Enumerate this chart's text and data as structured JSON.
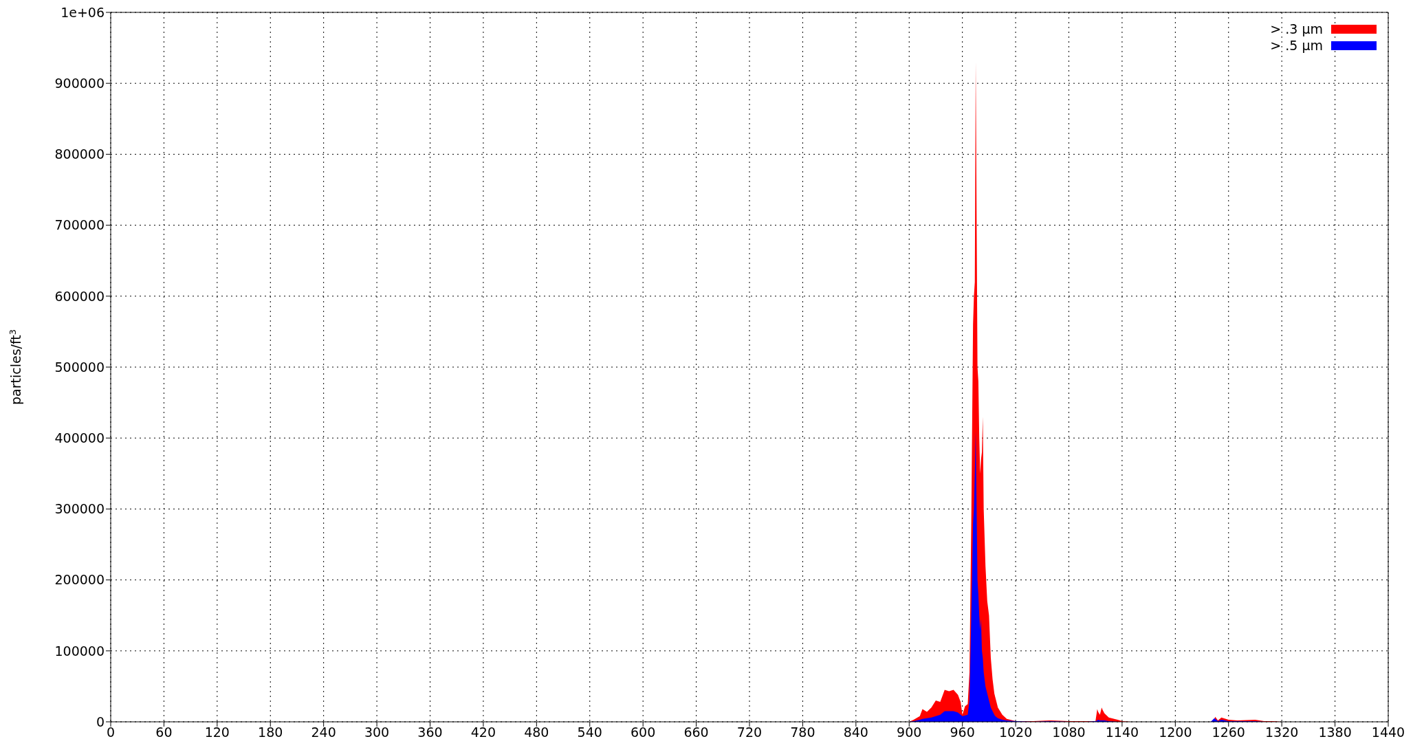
{
  "chart_data": {
    "type": "area",
    "ylabel": "particles/ft$^{3}$",
    "x": [
      0,
      900,
      905,
      912,
      915,
      920,
      925,
      930,
      935,
      940,
      945,
      950,
      955,
      958,
      960,
      963,
      966,
      968,
      970,
      972,
      973,
      974,
      975,
      977,
      978,
      979,
      980,
      981,
      982,
      983,
      984,
      986,
      988,
      990,
      992,
      994,
      996,
      997,
      1000,
      1005,
      1010,
      1020,
      1040,
      1060,
      1080,
      1100,
      1110,
      1112,
      1113,
      1115,
      1117,
      1118,
      1120,
      1125,
      1135,
      1140,
      1150,
      1240,
      1244,
      1245,
      1248,
      1252,
      1260,
      1270,
      1290,
      1300,
      1310,
      1320,
      1440
    ],
    "series": [
      {
        "name": "> .3 µm",
        "color": "#ff0000",
        "values": [
          0,
          0,
          3000,
          8000,
          18000,
          14000,
          20000,
          30000,
          28000,
          45000,
          43000,
          45000,
          38000,
          28000,
          10000,
          22000,
          25000,
          70000,
          280000,
          560000,
          600000,
          620000,
          930000,
          500000,
          480000,
          400000,
          350000,
          370000,
          380000,
          430000,
          300000,
          220000,
          170000,
          150000,
          90000,
          60000,
          40000,
          35000,
          20000,
          10000,
          4000,
          1000,
          1000,
          2000,
          1000,
          1000,
          1000,
          18000,
          14000,
          10000,
          20000,
          17000,
          12000,
          6000,
          3000,
          1000,
          0,
          0,
          4000,
          7000,
          2000,
          6000,
          3000,
          2000,
          3000,
          1000,
          1000,
          0,
          0
        ]
      },
      {
        "name": "> .5 µm",
        "color": "#0000ff",
        "values": [
          0,
          0,
          1000,
          3000,
          4000,
          5000,
          6000,
          8000,
          10000,
          15000,
          15000,
          15000,
          13000,
          10000,
          8000,
          9000,
          10000,
          30000,
          150000,
          280000,
          300000,
          350000,
          410000,
          200000,
          180000,
          150000,
          130000,
          145000,
          100000,
          90000,
          70000,
          50000,
          40000,
          30000,
          20000,
          15000,
          10000,
          8000,
          5000,
          3000,
          2000,
          1000,
          0,
          1000,
          0,
          0,
          1000,
          2000,
          3000,
          2000,
          2000,
          2000,
          2000,
          1000,
          0,
          0,
          0,
          0,
          5000,
          4000,
          1000,
          3000,
          1000,
          1000,
          1000,
          0,
          0,
          0,
          0
        ]
      }
    ],
    "xlim": [
      0,
      1440
    ],
    "xticks": [
      0,
      60,
      120,
      180,
      240,
      300,
      360,
      420,
      480,
      540,
      600,
      660,
      720,
      780,
      840,
      900,
      960,
      1020,
      1080,
      1140,
      1200,
      1260,
      1320,
      1380,
      1440
    ],
    "ylim": [
      0,
      1000000
    ],
    "yticks": [
      0,
      100000,
      200000,
      300000,
      400000,
      500000,
      600000,
      700000,
      800000,
      900000,
      {
        "value": 1000000,
        "label": "1e+06"
      }
    ],
    "grid": true,
    "legend": "top right"
  }
}
